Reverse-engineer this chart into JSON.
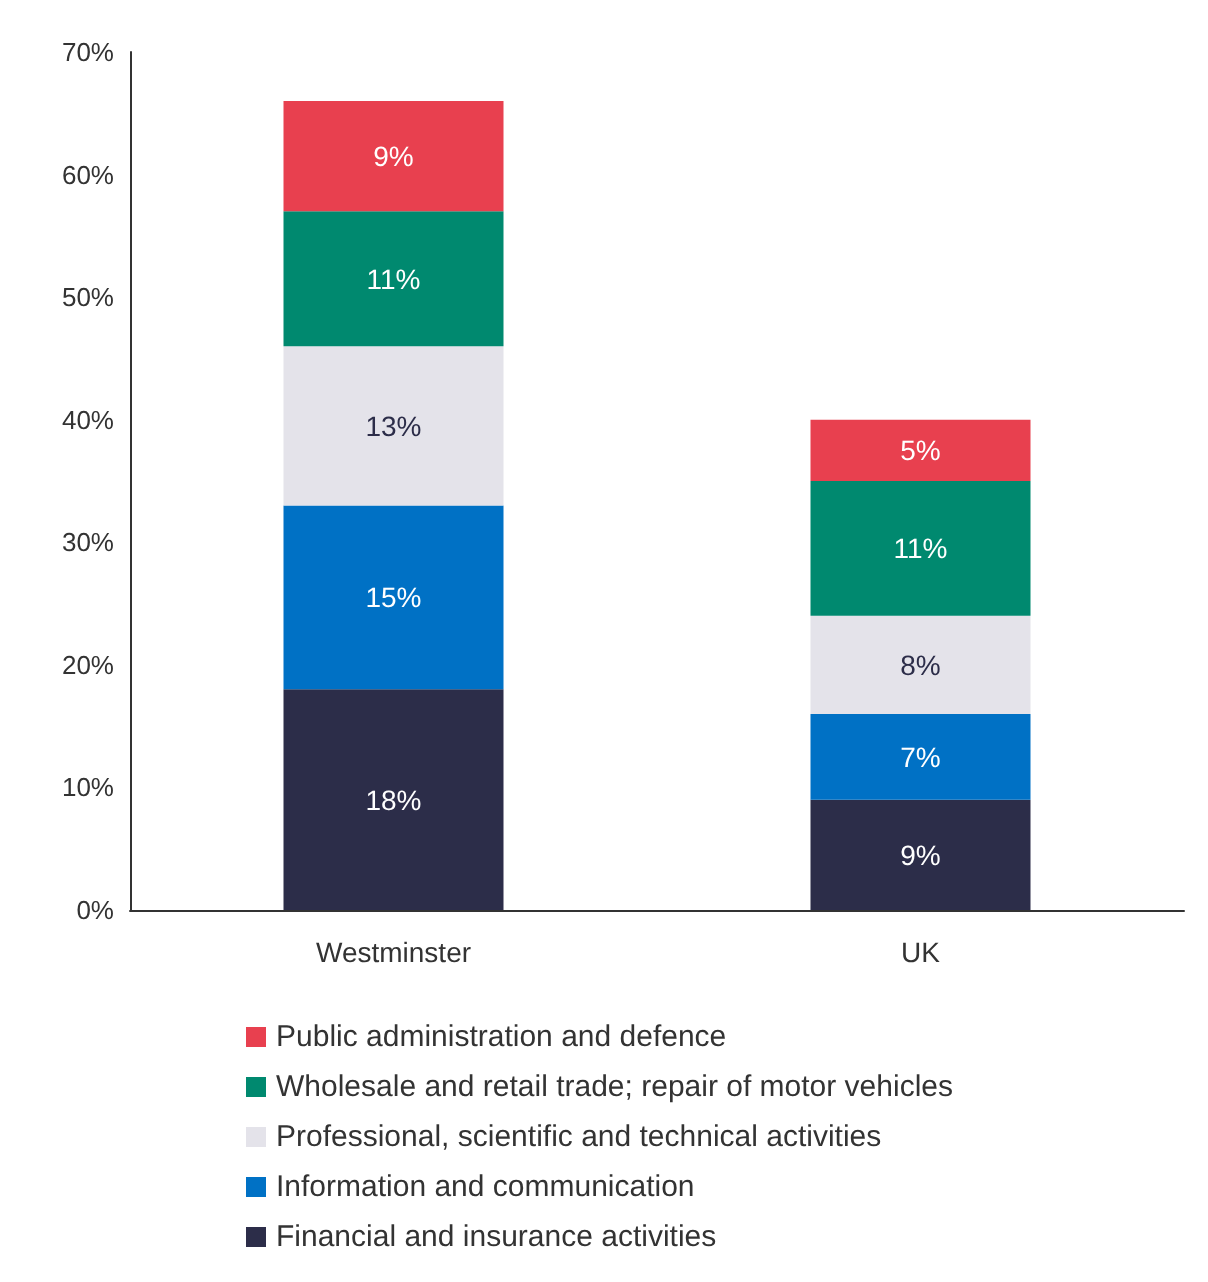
{
  "chart_data": {
    "type": "bar",
    "stacked": true,
    "categories": [
      "Westminster",
      "UK"
    ],
    "series": [
      {
        "name": "Financial and insurance activities",
        "color": "#2c2d49",
        "values": [
          18,
          9
        ],
        "value_labels": [
          "18%",
          "9%"
        ]
      },
      {
        "name": "Information and communication",
        "color": "#0071c5",
        "values": [
          15,
          7
        ],
        "value_labels": [
          "15%",
          "7%"
        ]
      },
      {
        "name": "Professional, scientific and technical activities",
        "color": "#e4e3ea",
        "values": [
          13,
          8
        ],
        "value_labels": [
          "13%",
          "8%"
        ]
      },
      {
        "name": "Wholesale and retail trade; repair of motor vehicles",
        "color": "#00896f",
        "values": [
          11,
          11
        ],
        "value_labels": [
          "11%",
          "11%"
        ]
      },
      {
        "name": "Public administration and defence",
        "color": "#e8404f",
        "values": [
          9,
          5
        ],
        "value_labels": [
          "9%",
          "5%"
        ]
      }
    ],
    "ylim": [
      0,
      70
    ],
    "yticks": [
      {
        "value": 0,
        "label": "0%"
      },
      {
        "value": 10,
        "label": "10%"
      },
      {
        "value": 20,
        "label": "20%"
      },
      {
        "value": 30,
        "label": "30%"
      },
      {
        "value": 40,
        "label": "40%"
      },
      {
        "value": 50,
        "label": "50%"
      },
      {
        "value": 60,
        "label": "60%"
      },
      {
        "value": 70,
        "label": "70%"
      }
    ],
    "grid": false,
    "legend": "bottom"
  }
}
